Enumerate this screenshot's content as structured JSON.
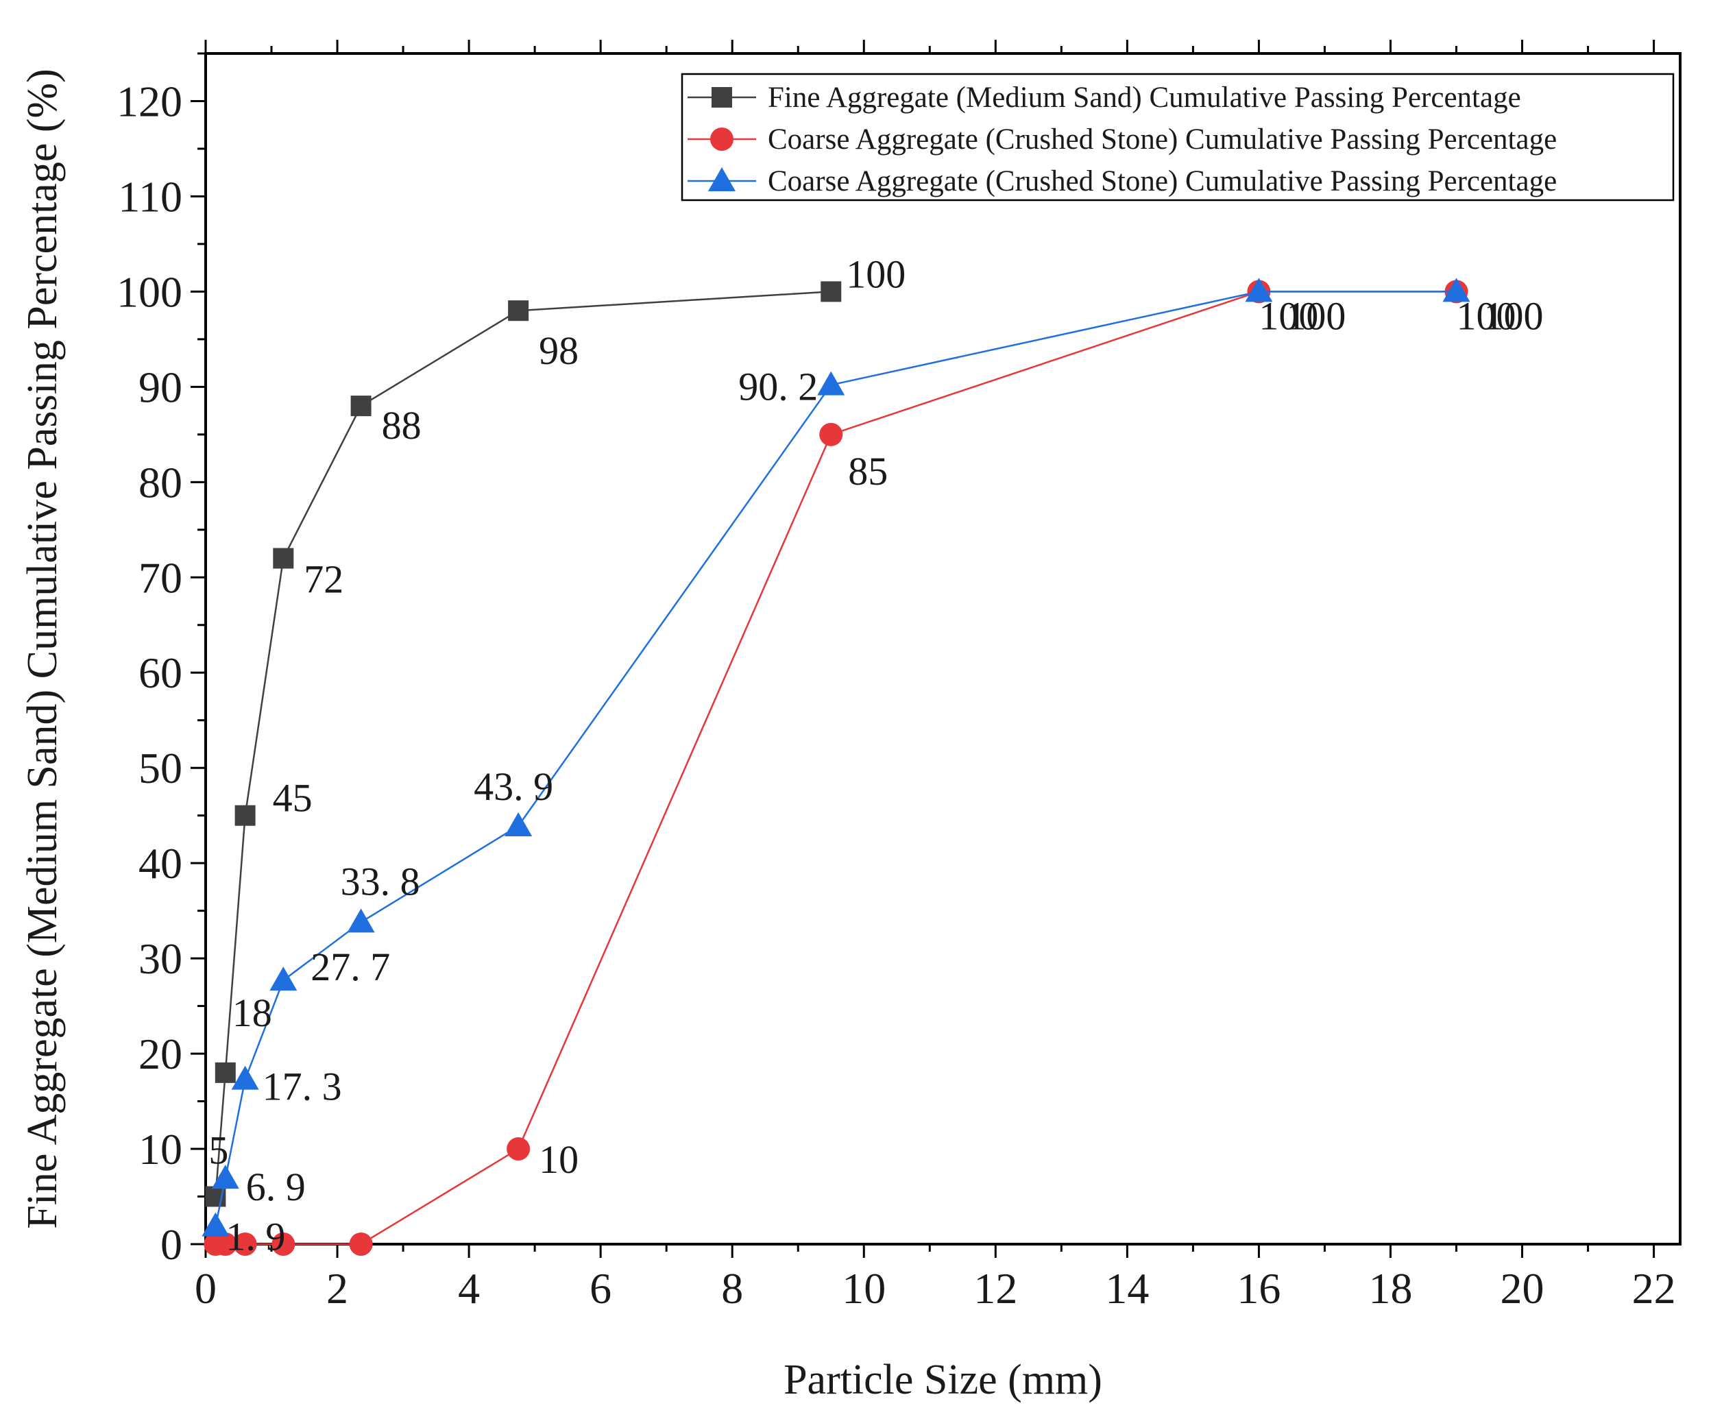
{
  "chart_data": {
    "type": "line",
    "title": "",
    "xlabel": "Particle Size (mm)",
    "ylabel": "Fine Aggregate (Medium Sand) Cumulative Passing Percentage (%)",
    "xlim": [
      0,
      22.4
    ],
    "ylim": [
      0,
      125
    ],
    "x_ticks": [
      "0",
      "2",
      "4",
      "6",
      "8",
      "10",
      "12",
      "14",
      "16",
      "18",
      "20",
      "22"
    ],
    "y_ticks": [
      "0",
      "10",
      "20",
      "30",
      "40",
      "50",
      "60",
      "70",
      "80",
      "90",
      "100",
      "110",
      "120"
    ],
    "grid": false,
    "legend_position": "top-right",
    "series": [
      {
        "name": "Fine Aggregate (Medium Sand) Cumulative Passing Percentage",
        "color": "#404040",
        "marker": "square",
        "x": [
          0.15,
          0.3,
          0.6,
          1.18,
          2.36,
          4.75,
          9.5
        ],
        "y": [
          5,
          18,
          45,
          72,
          88,
          98,
          100
        ],
        "labels": [
          "5",
          "18",
          "45",
          "72",
          "88",
          "98",
          "100"
        ]
      },
      {
        "name": "Coarse Aggregate (Crushed Stone) Cumulative Passing Percentage",
        "color": "#e8373a",
        "marker": "circle",
        "x": [
          0.15,
          0.3,
          0.6,
          1.18,
          2.36,
          4.75,
          9.5,
          16,
          19
        ],
        "y": [
          0,
          0,
          0,
          0,
          0,
          10,
          85,
          100,
          100
        ],
        "labels": [
          "",
          "",
          "",
          "",
          "",
          "10",
          "85",
          "100",
          "100"
        ]
      },
      {
        "name": "Coarse Aggregate (Crushed Stone) Cumulative Passing Percentage",
        "color": "#1f6fe0",
        "marker": "triangle",
        "x": [
          0.15,
          0.3,
          0.6,
          1.18,
          2.36,
          4.75,
          9.5,
          16,
          19
        ],
        "y": [
          1.9,
          6.9,
          17.3,
          27.7,
          33.8,
          43.9,
          90.2,
          100,
          100
        ],
        "labels": [
          "1. 9",
          "6. 9",
          "17. 3",
          "27. 7",
          "33. 8",
          "43. 9",
          "90. 2",
          "100",
          "100"
        ]
      }
    ]
  }
}
